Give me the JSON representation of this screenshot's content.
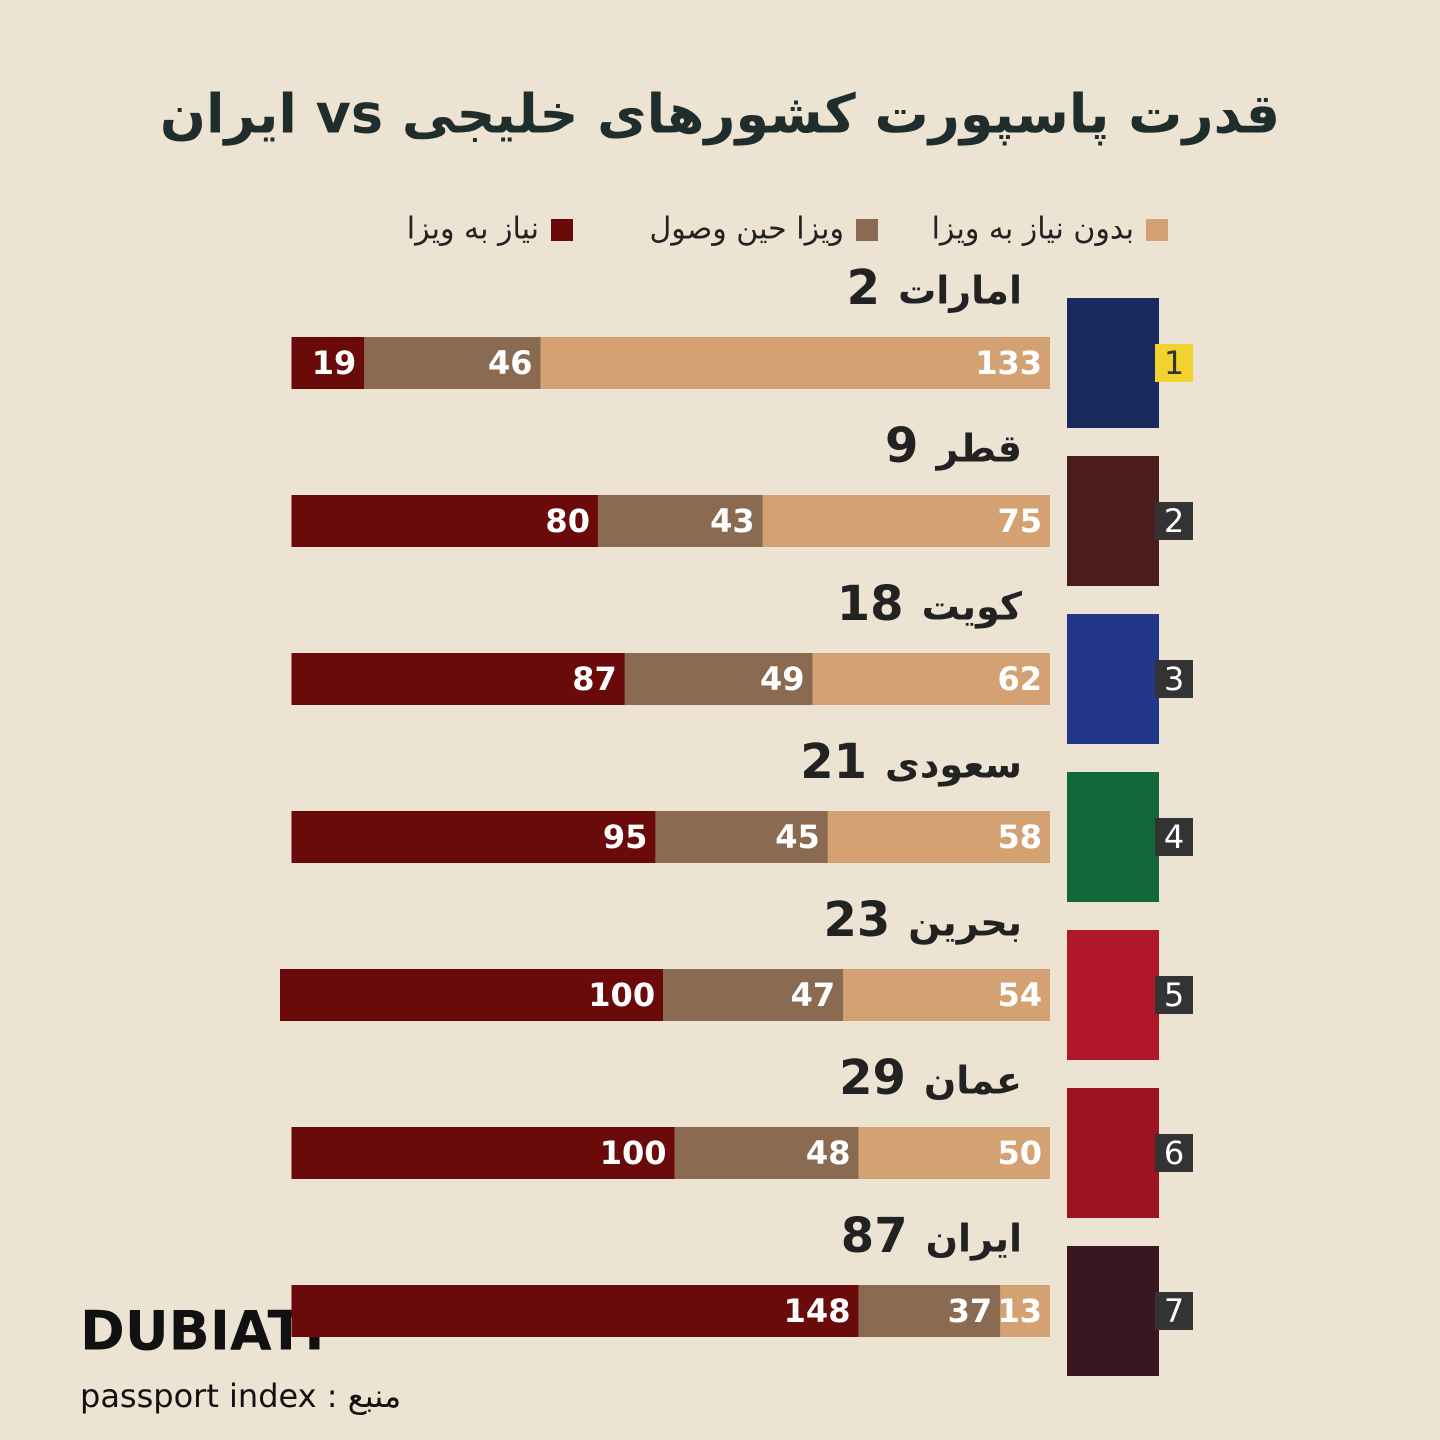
{
  "chart_data": {
    "type": "stacked-bar",
    "title": "قدرت پاسپورت کشورهای خلیجی vs ایران",
    "categories": [
      "امارات",
      "قطر",
      "کویت",
      "سعودی",
      "بحرین",
      "عمان",
      "ایران"
    ],
    "ranks": [
      2,
      9,
      18,
      21,
      23,
      29,
      87
    ],
    "positions": [
      1,
      2,
      3,
      4,
      5,
      6,
      7
    ],
    "series": [
      {
        "name": "بدون نیاز به ویزا",
        "color": "#d4a272",
        "values": [
          133,
          75,
          62,
          58,
          54,
          50,
          13
        ]
      },
      {
        "name": "ویزا حین وصول",
        "color": "#8a6a50",
        "values": [
          46,
          43,
          49,
          45,
          47,
          48,
          37
        ]
      },
      {
        "name": "نیاز به ویزا",
        "color": "#6a0a0a",
        "values": [
          19,
          80,
          87,
          95,
          100,
          100,
          148
        ]
      }
    ]
  },
  "footer": {
    "logo": "DUBIATI",
    "source": "منبع : passport index"
  }
}
